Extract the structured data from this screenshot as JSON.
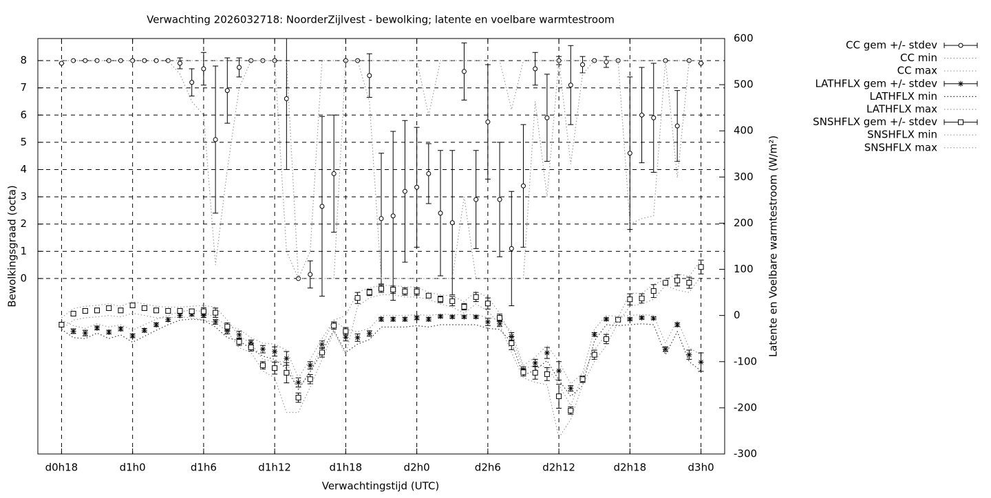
{
  "chart_data": {
    "type": "errorbar",
    "title": "Verwachting 2026032718: NoorderZijlvest - bewolking; latente en voelbare warmtestroom",
    "x_label": "Verwachtingstijd (UTC)",
    "y_label": "Bewolkingsgraad (octa)",
    "y2_label": "Latente en Voelbare warmtestroom (W/m²)",
    "grid": true,
    "legend": "outside-right-top",
    "xlim": [
      -2,
      56
    ],
    "xticks": [
      {
        "value": 0,
        "label": "d0h18"
      },
      {
        "value": 6,
        "label": "d1h0"
      },
      {
        "value": 12,
        "label": "d1h6"
      },
      {
        "value": 18,
        "label": "d1h12"
      },
      {
        "value": 24,
        "label": "d1h18"
      },
      {
        "value": 30,
        "label": "d2h0"
      },
      {
        "value": 36,
        "label": "d2h6"
      },
      {
        "value": 42,
        "label": "d2h12"
      },
      {
        "value": 48,
        "label": "d2h18"
      },
      {
        "value": 54,
        "label": "d3h0"
      }
    ],
    "ylim": [
      -6.44,
      8.81
    ],
    "yticks": [
      0,
      1,
      2,
      3,
      4,
      5,
      6,
      7,
      8
    ],
    "y2lim": [
      -300,
      600
    ],
    "y2ticks": [
      -300,
      -200,
      -100,
      0,
      100,
      200,
      300,
      400,
      500,
      600
    ],
    "x": [
      0,
      1,
      2,
      3,
      4,
      5,
      6,
      7,
      8,
      9,
      10,
      11,
      12,
      13,
      14,
      15,
      16,
      17,
      18,
      19,
      20,
      21,
      22,
      23,
      24,
      25,
      26,
      27,
      28,
      29,
      30,
      31,
      32,
      33,
      34,
      35,
      36,
      37,
      38,
      39,
      40,
      41,
      42,
      43,
      44,
      45,
      46,
      47,
      48,
      49,
      50,
      51,
      52,
      53,
      54
    ],
    "series": [
      {
        "name": "CC gem +/- stdev",
        "color": "#000000",
        "axis": "y",
        "marker": "circle",
        "values": [
          7.9,
          8,
          8,
          8,
          8,
          8,
          8,
          8,
          8,
          8,
          7.9,
          7.2,
          7.7,
          5.1,
          6.9,
          7.75,
          8,
          8,
          8,
          6.6,
          0,
          0.15,
          2.65,
          3.85,
          8,
          8,
          7.45,
          2.2,
          2.3,
          3.2,
          3.35,
          3.85,
          2.4,
          2.05,
          7.6,
          2.9,
          5.75,
          2.9,
          1.1,
          3.4,
          7.7,
          5.9,
          8,
          7.1,
          7.85,
          8,
          7.95,
          8,
          4.6,
          6.0,
          5.9,
          8,
          5.6,
          8,
          7.9
        ],
        "errors": [
          0,
          0,
          0,
          0,
          0,
          0,
          0,
          0,
          0,
          0,
          0.2,
          0.5,
          0.6,
          2.7,
          1.2,
          0.35,
          0,
          0,
          0,
          2.6,
          0,
          0.5,
          3.3,
          2.15,
          0,
          0,
          0.8,
          2.4,
          3.1,
          2.6,
          2.2,
          1.1,
          2.3,
          2.65,
          1.05,
          1.8,
          2.1,
          2.1,
          2.1,
          2.25,
          0.6,
          1.6,
          0.15,
          1.45,
          0.3,
          0,
          0.2,
          0,
          2.8,
          1.75,
          2.0,
          0,
          1.3,
          0,
          0
        ]
      },
      {
        "name": "CC min",
        "color": "#999999",
        "axis": "y",
        "style": "dotted",
        "values": [
          8,
          8,
          8,
          8,
          8,
          8,
          8,
          8,
          8,
          8,
          7.5,
          6.5,
          6,
          0.5,
          4,
          7,
          8,
          8,
          8,
          1,
          0,
          0,
          0,
          0,
          8,
          8,
          6.5,
          0,
          0,
          0,
          0,
          0,
          0,
          0,
          3,
          0,
          0,
          0,
          0,
          0,
          6.5,
          3,
          8,
          4.2,
          7.5,
          8,
          8,
          8,
          2,
          2.2,
          2.3,
          8,
          3.7,
          8,
          8
        ]
      },
      {
        "name": "CC max",
        "color": "#999999",
        "axis": "y",
        "style": "dotted",
        "values": [
          8,
          8,
          8,
          8,
          8,
          8,
          8,
          8,
          8,
          8,
          8,
          8,
          8,
          8,
          8,
          8,
          8,
          8,
          8,
          8,
          0,
          1,
          8,
          8,
          8,
          8,
          8,
          8,
          8,
          8,
          8,
          6,
          8,
          8,
          8,
          8,
          8,
          8,
          6.2,
          8,
          8,
          8,
          8,
          8,
          8,
          8,
          8,
          8,
          8,
          8,
          8,
          8,
          8,
          8,
          8
        ]
      },
      {
        "name": "LATHFLX gem +/- stdev",
        "color": "#000000",
        "axis": "y2",
        "marker": "star",
        "values": [
          -20,
          -34,
          -38,
          -27,
          -36,
          -29,
          -44,
          -32,
          -20,
          -9,
          0,
          3,
          0,
          -14,
          -34,
          -42,
          -59,
          -73,
          -78,
          -93,
          -145,
          -108,
          -63,
          -20,
          -47,
          -48,
          -39,
          -8,
          -8,
          -8,
          -5,
          -8,
          -2,
          -3,
          -3,
          -3,
          -14,
          -18,
          -45,
          -117,
          -103,
          -81,
          -120,
          -158,
          -138,
          -41,
          -8,
          -9,
          -8,
          -5,
          -6,
          -73,
          -20,
          -85,
          -101
        ],
        "errors": [
          5,
          5,
          6,
          4,
          4,
          4,
          4,
          4,
          4,
          4,
          4,
          4,
          4,
          5,
          6,
          8,
          6,
          8,
          10,
          15,
          10,
          8,
          8,
          6,
          8,
          8,
          6,
          4,
          4,
          4,
          4,
          4,
          3,
          3,
          3,
          3,
          8,
          6,
          8,
          6,
          8,
          12,
          20,
          6,
          5,
          4,
          3,
          3,
          3,
          3,
          3,
          5,
          4,
          10,
          20
        ]
      },
      {
        "name": "LATHFLX min",
        "color": "#333333",
        "axis": "y2",
        "style": "dotted",
        "values": [
          -30,
          -48,
          -50,
          -38,
          -50,
          -42,
          -58,
          -45,
          -32,
          -20,
          -10,
          -8,
          -10,
          -25,
          -48,
          -55,
          -72,
          -88,
          -95,
          -115,
          -160,
          -122,
          -78,
          -32,
          -80,
          -62,
          -52,
          -25,
          -25,
          -25,
          -22,
          -25,
          -20,
          -20,
          -20,
          -20,
          -28,
          -30,
          -58,
          -130,
          -118,
          -98,
          -140,
          -175,
          -152,
          -55,
          -20,
          -22,
          -20,
          -18,
          -20,
          -85,
          -35,
          -100,
          -120
        ]
      },
      {
        "name": "LATHFLX max",
        "color": "#999999",
        "axis": "y2",
        "style": "dotted",
        "values": [
          -10,
          -22,
          -28,
          -18,
          -25,
          -20,
          -32,
          -20,
          -8,
          0,
          8,
          12,
          8,
          -5,
          -22,
          -30,
          -48,
          -60,
          -62,
          -75,
          -135,
          -95,
          -50,
          -10,
          -30,
          -35,
          -28,
          0,
          0,
          0,
          2,
          0,
          3,
          2,
          2,
          2,
          -5,
          -8,
          -35,
          -108,
          -90,
          -65,
          -100,
          -148,
          -125,
          -30,
          0,
          -2,
          0,
          2,
          0,
          -60,
          -10,
          -70,
          -85
        ]
      },
      {
        "name": "SNSHFLX gem +/- stdev",
        "color": "#000000",
        "axis": "y2",
        "marker": "square",
        "values": [
          -20,
          4,
          10,
          11,
          16,
          11,
          22,
          16,
          11,
          10,
          10,
          9,
          9,
          6,
          -24,
          -57,
          -69,
          -108,
          -114,
          -124,
          -178,
          -138,
          -80,
          -22,
          -34,
          38,
          50,
          58,
          56,
          52,
          52,
          43,
          35,
          31,
          19,
          40,
          26,
          -5,
          -60,
          -123,
          -124,
          -127,
          -175,
          -206,
          -138,
          -85,
          -51,
          -9,
          35,
          37,
          53,
          71,
          76,
          71,
          105
        ],
        "errors": [
          5,
          5,
          5,
          5,
          5,
          5,
          5,
          5,
          5,
          5,
          5,
          5,
          8,
          10,
          8,
          8,
          8,
          8,
          13,
          22,
          10,
          10,
          10,
          8,
          8,
          12,
          7,
          8,
          8,
          8,
          8,
          4,
          7,
          10,
          7,
          10,
          12,
          8,
          14,
          8,
          14,
          14,
          26,
          8,
          7,
          10,
          10,
          3,
          12,
          10,
          14,
          5,
          12,
          12,
          15
        ]
      },
      {
        "name": "SNSHFLX min",
        "color": "#999999",
        "axis": "y2",
        "style": "dotted",
        "values": [
          -30,
          -10,
          -5,
          -3,
          0,
          -3,
          5,
          0,
          -5,
          -5,
          -3,
          -5,
          -10,
          -15,
          -35,
          -70,
          -80,
          -120,
          -135,
          -210,
          -210,
          -155,
          -95,
          -35,
          -85,
          20,
          38,
          45,
          45,
          40,
          40,
          35,
          25,
          18,
          5,
          25,
          10,
          -20,
          -80,
          -135,
          -145,
          -150,
          -265,
          -225,
          -150,
          -100,
          -65,
          -15,
          20,
          25,
          35,
          65,
          55,
          50,
          85
        ]
      },
      {
        "name": "SNSHFLX max",
        "color": "#999999",
        "axis": "y2",
        "style": "dotted",
        "values": [
          -5,
          15,
          20,
          22,
          25,
          20,
          30,
          25,
          20,
          18,
          18,
          20,
          22,
          18,
          -10,
          -45,
          -60,
          -95,
          -100,
          -100,
          -160,
          -120,
          -65,
          -10,
          0,
          50,
          60,
          65,
          65,
          62,
          62,
          50,
          45,
          42,
          30,
          52,
          40,
          5,
          -45,
          -115,
          -108,
          -112,
          -150,
          -195,
          -130,
          -75,
          -40,
          -5,
          48,
          48,
          67,
          78,
          90,
          85,
          120
        ]
      }
    ]
  }
}
